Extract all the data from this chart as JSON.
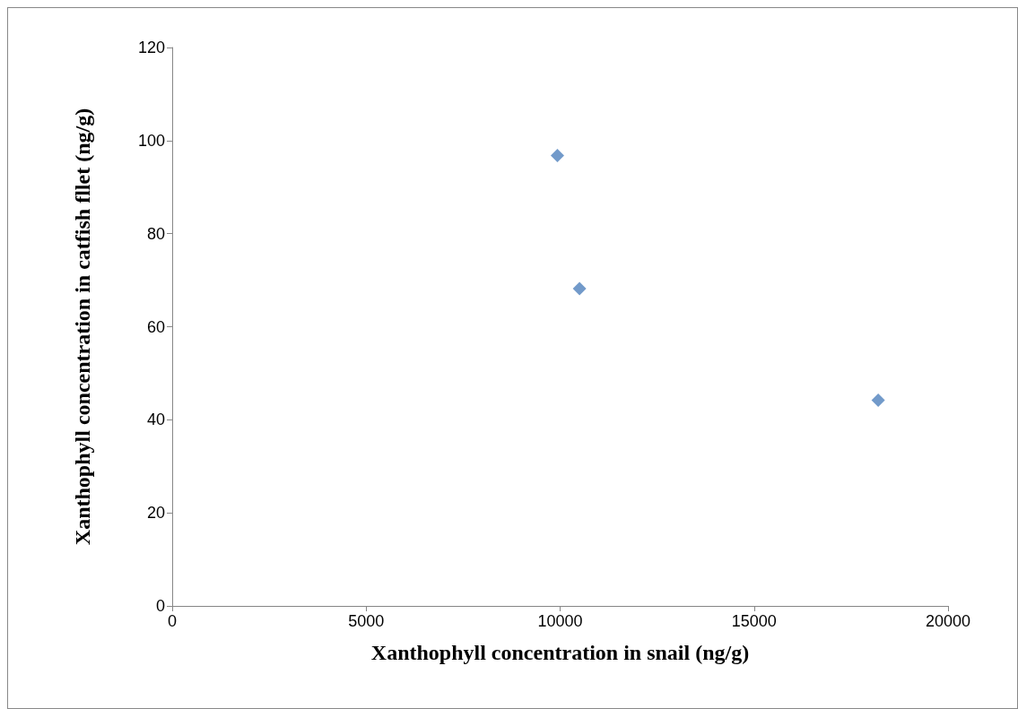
{
  "chart_data": {
    "type": "scatter",
    "xlabel": "Xanthophyll concentration in snail (ng/g)",
    "ylabel": "Xanthophyll concentration in catfish fllet (ng/g)",
    "x": [
      9930,
      10500,
      18200
    ],
    "series": [
      {
        "color": "#4f81bd",
        "values": [
          96.8,
          68.2,
          44.2
        ]
      }
    ],
    "xlim": [
      0,
      20000
    ],
    "xticks": [
      0,
      5000,
      10000,
      15000,
      20000
    ],
    "ylim": [
      0,
      120
    ],
    "yticks": [
      0,
      20,
      40,
      60,
      80,
      100,
      120
    ],
    "grid": false,
    "marker": "diamond"
  }
}
